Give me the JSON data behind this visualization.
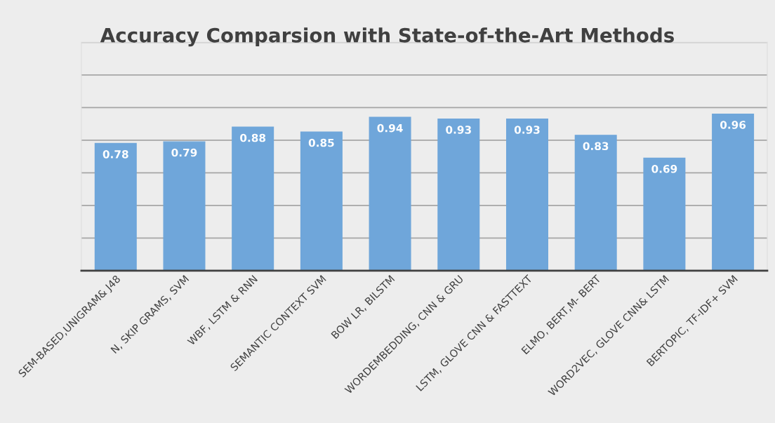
{
  "chart_data": {
    "type": "bar",
    "title": "Accuracy Comparsion with State-of-the-Art Methods",
    "categories": [
      "SEM-BASED,UNIGRAM& J48",
      "N, SKIP GRAMS, SVM",
      "WBF, LSTM & RNN",
      "SEMANTIC CONTEXT SVM",
      "BOW LR, BILSTM",
      "WORDEMBEDDING, CNN & GRU",
      "LSTM, GLOVE CNN & FASTTEXT",
      "ELMO, BERT,M- BERT",
      "WORD2VEC, GLOVE CNN& LSTM",
      "BERTOPIC, TF-IDF+ SVM"
    ],
    "values": [
      0.78,
      0.79,
      0.88,
      0.85,
      0.94,
      0.93,
      0.93,
      0.83,
      0.69,
      0.96
    ],
    "color": "#6fa6da",
    "ylim": [
      0,
      1.4
    ],
    "yticks": [
      {
        "value": 0,
        "label": null
      },
      {
        "value": 0.2,
        "label": null
      },
      {
        "value": 0.4,
        "label": null
      },
      {
        "value": 0.6,
        "label": null
      },
      {
        "value": 0.8,
        "label": null
      },
      {
        "value": 1.0,
        "label": null
      },
      {
        "value": 1.2,
        "label": null
      },
      {
        "value": 1.4,
        "label": null
      }
    ],
    "grid": "y",
    "tick_labels": "x",
    "data_labels": true
  }
}
